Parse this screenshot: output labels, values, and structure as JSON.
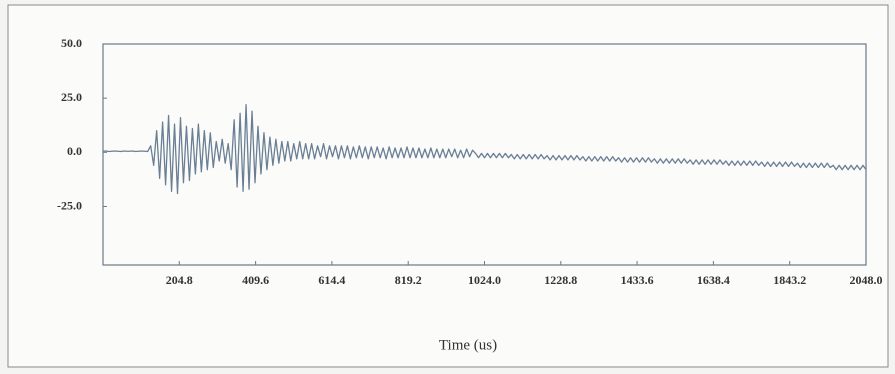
{
  "chart_data": {
    "type": "line",
    "x_label": "Time (us)",
    "color": "#6a7f95",
    "xlim": [
      0,
      2048
    ],
    "ylim": [
      -52,
      50
    ],
    "xticks": [
      204.8,
      409.6,
      614.4,
      819.2,
      {
        "value": 1024,
        "label": "1024.0"
      },
      1228.8,
      1433.6,
      1638.4,
      1843.2,
      {
        "value": 2048,
        "label": "2048.0"
      }
    ],
    "yticks": [
      {
        "value": 50,
        "label": "50.0"
      },
      {
        "value": 25,
        "label": "25.0"
      },
      {
        "value": 0,
        "label": "0.0"
      },
      {
        "value": -25,
        "label": "-25.0"
      }
    ],
    "grid": false,
    "x": [
      0,
      8,
      16,
      24,
      32,
      40,
      48,
      56,
      64,
      72,
      80,
      88,
      96,
      104,
      112,
      120,
      128,
      136,
      144,
      152,
      160,
      168,
      176,
      184,
      192,
      200,
      208,
      216,
      224,
      232,
      240,
      248,
      256,
      264,
      272,
      280,
      288,
      296,
      304,
      312,
      320,
      328,
      336,
      344,
      352,
      360,
      368,
      376,
      384,
      392,
      400,
      408,
      416,
      424,
      432,
      440,
      448,
      456,
      464,
      472,
      480,
      488,
      496,
      504,
      512,
      520,
      528,
      536,
      544,
      552,
      560,
      568,
      576,
      584,
      592,
      600,
      608,
      616,
      624,
      632,
      640,
      648,
      656,
      664,
      672,
      680,
      688,
      696,
      704,
      712,
      720,
      728,
      736,
      744,
      752,
      760,
      768,
      776,
      784,
      792,
      800,
      808,
      816,
      824,
      832,
      840,
      848,
      856,
      864,
      872,
      880,
      888,
      896,
      904,
      912,
      920,
      928,
      936,
      944,
      952,
      960,
      968,
      976,
      984,
      992,
      1000,
      1008,
      1016,
      1024,
      1032,
      1040,
      1048,
      1056,
      1064,
      1072,
      1080,
      1088,
      1096,
      1104,
      1112,
      1120,
      1128,
      1136,
      1144,
      1152,
      1160,
      1168,
      1176,
      1184,
      1192,
      1200,
      1208,
      1216,
      1224,
      1232,
      1240,
      1248,
      1256,
      1264,
      1272,
      1280,
      1288,
      1296,
      1304,
      1312,
      1320,
      1328,
      1336,
      1344,
      1352,
      1360,
      1368,
      1376,
      1384,
      1392,
      1400,
      1408,
      1416,
      1424,
      1432,
      1440,
      1448,
      1456,
      1464,
      1472,
      1480,
      1488,
      1496,
      1504,
      1512,
      1520,
      1528,
      1536,
      1544,
      1552,
      1560,
      1568,
      1576,
      1584,
      1592,
      1600,
      1608,
      1616,
      1624,
      1632,
      1640,
      1648,
      1656,
      1664,
      1672,
      1680,
      1688,
      1696,
      1704,
      1712,
      1720,
      1728,
      1736,
      1744,
      1752,
      1760,
      1768,
      1776,
      1784,
      1792,
      1800,
      1808,
      1816,
      1824,
      1832,
      1840,
      1848,
      1856,
      1864,
      1872,
      1880,
      1888,
      1896,
      1904,
      1912,
      1920,
      1928,
      1936,
      1944,
      1952,
      1960,
      1968,
      1976,
      1984,
      1992,
      2000,
      2008,
      2016,
      2024,
      2032,
      2040,
      2048
    ],
    "values": [
      0.5,
      0.6,
      0.4,
      0.5,
      0.6,
      0.5,
      0.4,
      0.6,
      0.5,
      0.5,
      0.6,
      0.4,
      0.5,
      0.6,
      0.5,
      0.4,
      3,
      -6,
      10,
      -12,
      14,
      -15,
      17,
      -18,
      13,
      -19,
      16,
      -14,
      12,
      -13,
      11,
      -10,
      13,
      -9,
      10,
      -8,
      9,
      -7,
      5,
      -4,
      6,
      -5,
      4,
      -8,
      15,
      -16,
      18,
      -18,
      22,
      -17,
      19,
      -14,
      12,
      -10,
      9,
      -8,
      7,
      -6,
      6,
      -5,
      5,
      -4,
      5,
      -4,
      4,
      -3,
      5,
      -3,
      4,
      -3,
      4,
      -3,
      3,
      -2,
      4,
      -3,
      3,
      -2,
      3,
      -3,
      3,
      -2.5,
      3,
      -3,
      2.5,
      -2.5,
      3,
      -2.5,
      2.5,
      -3,
      2.5,
      -2.5,
      2.5,
      -2.5,
      2,
      -3,
      2.5,
      -2.5,
      2,
      -2.5,
      2,
      -2.5,
      2.5,
      -2.5,
      2,
      -2.5,
      2,
      -2.5,
      1.5,
      -2.5,
      2,
      -2.5,
      1.5,
      -2.5,
      1.5,
      -2.5,
      1.5,
      -2,
      1.5,
      -2.5,
      1,
      -2.5,
      1.5,
      -2,
      1,
      -0.5,
      -2.5,
      -0.5,
      -2.5,
      -0.5,
      -2.5,
      -0.5,
      -2.5,
      -0.5,
      -2.5,
      -0.5,
      -2.5,
      -1,
      -3,
      -1,
      -3,
      -1,
      -3,
      -1,
      -3,
      -1,
      -3,
      -1,
      -3,
      -1.5,
      -3.5,
      -1.5,
      -3.5,
      -1.5,
      -3.5,
      -1.5,
      -3.5,
      -1.5,
      -3.5,
      -1.5,
      -3.5,
      -2,
      -4,
      -2,
      -4,
      -2,
      -4,
      -2,
      -4,
      -2,
      -4,
      -2,
      -4,
      -2.5,
      -4.5,
      -2.5,
      -4.5,
      -2.5,
      -4.5,
      -2.5,
      -4.5,
      -2.5,
      -4.5,
      -2.5,
      -4.5,
      -3,
      -5,
      -3,
      -5,
      -3,
      -5,
      -3,
      -5,
      -3,
      -5,
      -3,
      -5,
      -3.5,
      -5.5,
      -3.5,
      -5.5,
      -3.5,
      -5.5,
      -3.5,
      -5.5,
      -3.5,
      -5.5,
      -3.5,
      -5.5,
      -4,
      -6,
      -4,
      -6,
      -4,
      -6,
      -4,
      -6,
      -4,
      -6,
      -4,
      -6,
      -4.5,
      -6.5,
      -4.5,
      -6.5,
      -4.5,
      -6.5,
      -4.5,
      -6.5,
      -4.5,
      -6.5,
      -4.5,
      -6.5,
      -5,
      -7,
      -5,
      -7,
      -5,
      -7,
      -5,
      -7,
      -5,
      -7,
      -5,
      -7,
      -6,
      -8,
      -6,
      -8,
      -6,
      -8,
      -6,
      -8,
      -6,
      -8,
      -6,
      -8
    ]
  }
}
